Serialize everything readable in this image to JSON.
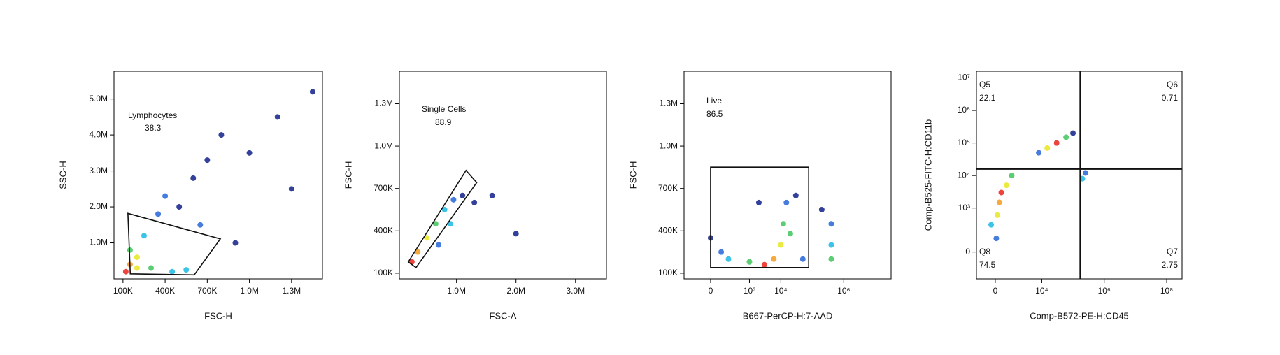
{
  "chart_data": [
    {
      "type": "scatter",
      "xlabel": "FSC-H",
      "ylabel": "SSC-H",
      "xscale": "linear",
      "yscale": "linear",
      "xlim": [
        36000,
        1520000
      ],
      "ylim": [
        0,
        5770000
      ],
      "xticks": [
        {
          "value": 100000,
          "label": "100K"
        },
        {
          "value": 400000,
          "label": "400K"
        },
        {
          "value": 700000,
          "label": "700K"
        },
        {
          "value": 1000000,
          "label": "1.0M"
        },
        {
          "value": 1300000,
          "label": "1.3M"
        }
      ],
      "yticks": [
        {
          "value": 1000000,
          "label": "1.0M"
        },
        {
          "value": 2000000,
          "label": "2.0M"
        },
        {
          "value": 3000000,
          "label": "3.0M"
        },
        {
          "value": 4000000,
          "label": "4.0M"
        },
        {
          "value": 5000000,
          "label": "5.0M"
        }
      ],
      "x": [
        120000,
        150000,
        200000,
        300000,
        450000,
        550000,
        150000,
        250000,
        350000,
        400000,
        500000,
        600000,
        700000,
        800000,
        900000,
        1000000,
        1200000,
        1300000,
        1450000,
        650000,
        200000
      ],
      "y": [
        200000,
        400000,
        300000,
        300000,
        200000,
        250000,
        800000,
        1200000,
        1800000,
        2300000,
        2000000,
        2800000,
        3300000,
        4000000,
        1000000,
        3500000,
        4500000,
        2500000,
        5200000,
        1500000,
        600000
      ],
      "colors": [
        "#e8251c",
        "#f59a1a",
        "#e8e61e",
        "#3ec45a",
        "#1bb8e0",
        "#1bb8e0",
        "#3ec45a",
        "#1bb8e0",
        "#2565d8",
        "#2565d8",
        "#10208a",
        "#10208a",
        "#10208a",
        "#10208a",
        "#10208a",
        "#10208a",
        "#10208a",
        "#10208a",
        "#10208a",
        "#2565d8",
        "#e8e61e"
      ],
      "gates": [
        {
          "name": "Lymphocytes",
          "value": 38.3,
          "x": [
            135000,
            793000,
            607000,
            152000
          ],
          "y": [
            1820000,
            1110000,
            110000,
            140000
          ]
        }
      ]
    },
    {
      "type": "scatter",
      "xlabel": "FSC-A",
      "ylabel": "FSC-H",
      "xscale": "linear",
      "yscale": "linear",
      "xlim": [
        40000,
        3520000
      ],
      "ylim": [
        60000,
        1530000
      ],
      "xticks": [
        {
          "value": 1000000,
          "label": "1.0M"
        },
        {
          "value": 2000000,
          "label": "2.0M"
        },
        {
          "value": 3000000,
          "label": "3.0M"
        }
      ],
      "yticks": [
        {
          "value": 100000,
          "label": "100K"
        },
        {
          "value": 400000,
          "label": "400K"
        },
        {
          "value": 700000,
          "label": "700K"
        },
        {
          "value": 1000000,
          "label": "1.0M"
        },
        {
          "value": 1300000,
          "label": "1.3M"
        }
      ],
      "x": [
        250000,
        350000,
        500000,
        650000,
        800000,
        950000,
        1100000,
        700000,
        1300000,
        1600000,
        2000000,
        900000
      ],
      "y": [
        180000,
        250000,
        350000,
        450000,
        550000,
        620000,
        650000,
        300000,
        600000,
        650000,
        380000,
        450000
      ],
      "colors": [
        "#e8251c",
        "#f59a1a",
        "#e8e61e",
        "#3ec45a",
        "#1bb8e0",
        "#2565d8",
        "#10208a",
        "#2565d8",
        "#10208a",
        "#10208a",
        "#10208a",
        "#1bb8e0"
      ],
      "gates": [
        {
          "name": "Single Cells",
          "value": 88.9,
          "x": [
            190000,
            1160000,
            1340000,
            320000
          ],
          "y": [
            180000,
            828000,
            742000,
            140000
          ]
        }
      ]
    },
    {
      "type": "scatter",
      "xlabel": "B667-PerCP-H:7-AAD",
      "ylabel": "FSC-H",
      "xscale": "biex",
      "yscale": "linear",
      "xlim": [
        -400,
        32000000
      ],
      "ylim": [
        60000,
        1530000
      ],
      "xticks": [
        0,
        {
          "value": 1000,
          "label": "10³"
        },
        {
          "value": 10000,
          "label": "10⁴"
        },
        {
          "value": 1000000,
          "label": "10⁶"
        }
      ],
      "yticks": [
        {
          "value": 100000,
          "label": "100K"
        },
        {
          "value": 400000,
          "label": "400K"
        },
        {
          "value": 700000,
          "label": "700K"
        },
        {
          "value": 1000000,
          "label": "1.0M"
        },
        {
          "value": 1300000,
          "label": "1.3M"
        }
      ],
      "x": [
        200,
        1000,
        3000,
        6000,
        10000,
        12000,
        15000,
        30000,
        20000,
        400000,
        400000,
        400000,
        0,
        100,
        50000,
        2000,
        200000
      ],
      "y": [
        200000,
        180000,
        160000,
        200000,
        300000,
        450000,
        600000,
        650000,
        380000,
        300000,
        200000,
        450000,
        350000,
        250000,
        200000,
        600000,
        550000
      ],
      "colors": [
        "#1bb8e0",
        "#3ec45a",
        "#e8251c",
        "#f59a1a",
        "#e8e61e",
        "#3ec45a",
        "#2565d8",
        "#10208a",
        "#3ec45a",
        "#1bb8e0",
        "#3ec45a",
        "#2565d8",
        "#10208a",
        "#2565d8",
        "#2565d8",
        "#10208a",
        "#10208a"
      ],
      "gates": [
        {
          "name": "Live",
          "value": 86.5,
          "x": [
            0,
            76800,
            76800,
            0
          ],
          "y": [
            851000,
            851000,
            140000,
            140000
          ]
        }
      ]
    },
    {
      "type": "scatter",
      "xlabel": "Comp-B572-PE-H:CD45",
      "ylabel": "Comp-B525-FITC-H:CD11b",
      "xscale": "biex",
      "yscale": "biex",
      "xlim": [
        -1220,
        310000000
      ],
      "ylim": [
        -290,
        16000000
      ],
      "xticks": [
        0,
        {
          "value": 10000,
          "label": "10⁴"
        },
        {
          "value": 1000000,
          "label": "10⁶"
        },
        {
          "value": 100000000,
          "label": "10⁸"
        }
      ],
      "yticks": [
        0,
        {
          "value": 1000,
          "label": "10³"
        },
        {
          "value": 10000,
          "label": "10⁴"
        },
        {
          "value": 100000,
          "label": "10⁵"
        },
        {
          "value": 1000000,
          "label": "10⁶"
        },
        {
          "value": 10000000,
          "label": "10⁷"
        }
      ],
      "x": [
        300,
        200,
        100,
        600,
        -200,
        1000,
        50,
        30000,
        15000,
        60000,
        8000,
        100000,
        200000,
        250000
      ],
      "y": [
        3000,
        1500,
        600,
        5000,
        300,
        10000,
        100,
        100000,
        70000,
        150000,
        50000,
        200000,
        8000,
        12000
      ],
      "colors": [
        "#e8251c",
        "#f59a1a",
        "#e8e61e",
        "#e8e61e",
        "#1bb8e0",
        "#3ec45a",
        "#2565d8",
        "#e8251c",
        "#e8e61e",
        "#3ec45a",
        "#2565d8",
        "#10208a",
        "#1bb8e0",
        "#2565d8"
      ],
      "quadrants": {
        "x": 170000,
        "y": 15800,
        "labels": [
          {
            "name": "Q5",
            "value": 22.1
          },
          {
            "name": "Q6",
            "value": 0.71
          },
          {
            "name": "Q7",
            "value": 2.75
          },
          {
            "name": "Q8",
            "value": 74.5
          }
        ]
      }
    }
  ]
}
